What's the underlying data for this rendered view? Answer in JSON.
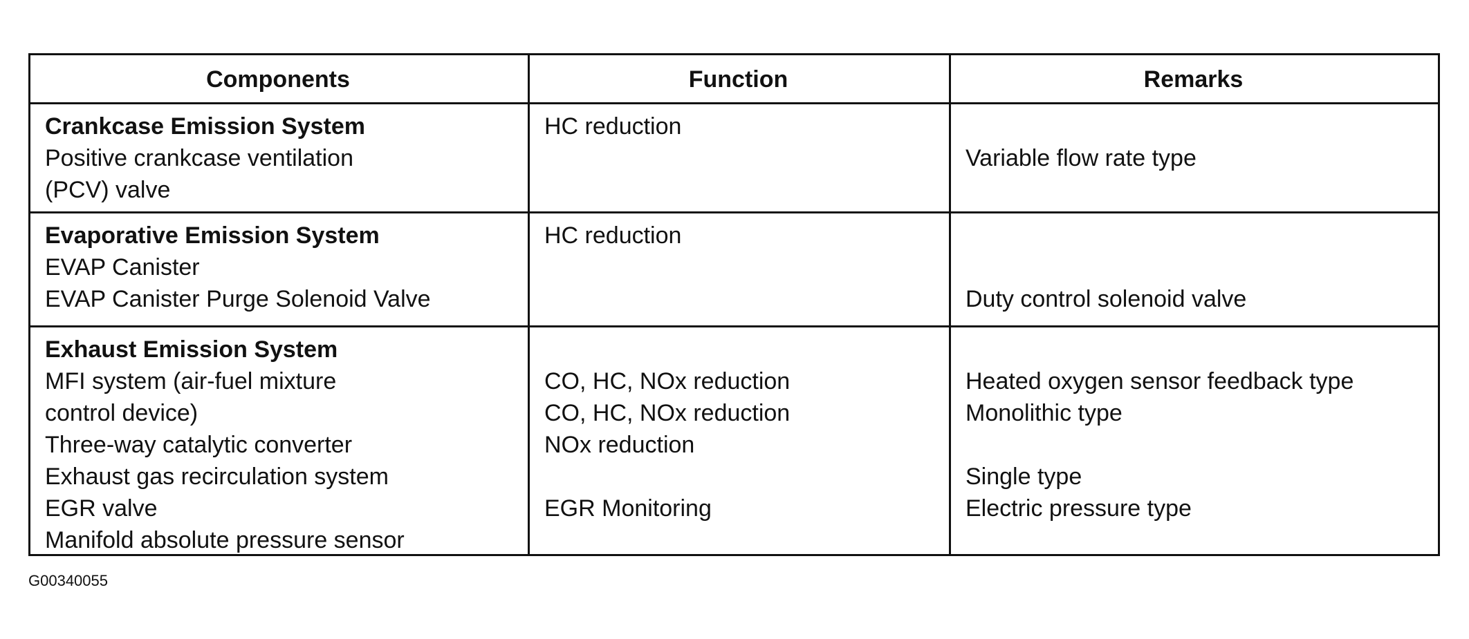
{
  "table": {
    "headers": [
      "Components",
      "Function",
      "Remarks"
    ],
    "rows": [
      {
        "components": [
          "Crankcase Emission System",
          "Positive crankcase ventilation",
          "(PCV) valve"
        ],
        "function": [
          "HC reduction"
        ],
        "remarks": [
          "Variable flow rate type"
        ]
      },
      {
        "components": [
          "Evaporative Emission System",
          "EVAP Canister",
          "EVAP Canister Purge Solenoid Valve"
        ],
        "function": [
          "HC reduction"
        ],
        "remarks": [
          "Duty control solenoid valve"
        ]
      },
      {
        "components": [
          "Exhaust Emission System",
          "MFI system (air-fuel mixture",
          "control device)",
          "Three-way catalytic converter",
          "Exhaust gas recirculation system",
          "EGR valve",
          "Manifold absolute pressure sensor"
        ],
        "function": [
          "CO, HC, NOx reduction",
          "CO, HC, NOx reduction",
          "NOx reduction",
          "EGR Monitoring"
        ],
        "remarks": [
          "Heated oxygen sensor feedback type",
          "Monolithic type",
          "Single type",
          "Electric pressure type"
        ]
      }
    ]
  },
  "figure_id": "G00340055"
}
